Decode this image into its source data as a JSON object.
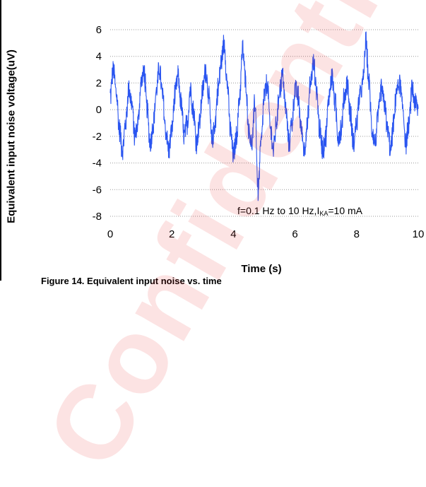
{
  "chart_data": {
    "type": "line",
    "xlabel": "Time (s)",
    "ylabel": "Equivalent input noise voltage(uV)",
    "xlim": [
      0,
      10
    ],
    "ylim": [
      -8,
      6
    ],
    "x_ticks": [
      "0",
      "2",
      "4",
      "6",
      "8",
      "10"
    ],
    "y_ticks": [
      "6",
      "4",
      "2",
      "0",
      "-2",
      "-4",
      "-6",
      "-8"
    ],
    "grid": "horizontal dotted",
    "series": [
      {
        "color": "#2a55f0",
        "x": [
          0.0,
          0.1,
          0.2,
          0.3,
          0.4,
          0.5,
          0.6,
          0.7,
          0.8,
          0.9,
          1.0,
          1.1,
          1.2,
          1.3,
          1.4,
          1.5,
          1.6,
          1.7,
          1.8,
          1.9,
          2.0,
          2.1,
          2.2,
          2.3,
          2.4,
          2.5,
          2.6,
          2.7,
          2.8,
          2.9,
          3.0,
          3.1,
          3.2,
          3.3,
          3.4,
          3.5,
          3.6,
          3.7,
          3.8,
          3.9,
          4.0,
          4.1,
          4.2,
          4.3,
          4.4,
          4.5,
          4.6,
          4.7,
          4.8,
          4.9,
          5.0,
          5.1,
          5.2,
          5.3,
          5.4,
          5.5,
          5.6,
          5.7,
          5.8,
          5.9,
          6.0,
          6.1,
          6.2,
          6.3,
          6.4,
          6.5,
          6.6,
          6.7,
          6.8,
          6.9,
          7.0,
          7.1,
          7.2,
          7.3,
          7.4,
          7.5,
          7.6,
          7.7,
          7.8,
          7.9,
          8.0,
          8.1,
          8.2,
          8.3,
          8.4,
          8.5,
          8.6,
          8.7,
          8.8,
          8.9,
          9.0,
          9.1,
          9.2,
          9.3,
          9.4,
          9.5,
          9.6,
          9.7,
          9.8,
          9.9,
          10.0
        ],
        "y": [
          1.0,
          3.0,
          1.2,
          -1.5,
          -3.0,
          -1.0,
          1.5,
          0.5,
          -2.0,
          -1.0,
          2.0,
          2.8,
          0.0,
          -2.5,
          -1.0,
          1.5,
          3.0,
          1.0,
          -1.5,
          -3.0,
          -1.5,
          1.0,
          2.5,
          0.5,
          -2.0,
          -1.0,
          1.5,
          0.0,
          -2.5,
          -1.0,
          1.5,
          3.0,
          1.0,
          -2.5,
          -1.0,
          1.5,
          3.5,
          5.0,
          2.0,
          -1.5,
          -3.5,
          -2.0,
          1.0,
          4.5,
          2.0,
          -1.5,
          -2.5,
          0.5,
          -6.0,
          -2.5,
          1.0,
          2.0,
          -1.5,
          -3.0,
          -1.0,
          1.5,
          2.5,
          0.0,
          -2.5,
          -1.0,
          1.5,
          1.0,
          -1.5,
          -3.0,
          -1.0,
          2.0,
          3.5,
          1.5,
          -1.5,
          -3.0,
          -2.0,
          1.0,
          2.5,
          0.5,
          -2.0,
          -1.5,
          1.0,
          2.0,
          -0.5,
          -2.5,
          -1.0,
          1.0,
          2.0,
          5.0,
          2.0,
          -1.5,
          -2.5,
          -0.5,
          1.5,
          0.5,
          -1.5,
          -3.0,
          -1.0,
          1.5,
          2.0,
          0.0,
          -2.5,
          -1.0,
          1.5,
          0.5,
          0.0
        ]
      }
    ],
    "annotation": {
      "prefix": "f=0.1 Hz to 10 Hz,I",
      "subscript": "KA",
      "suffix": "=10 mA"
    }
  },
  "caption": "Figure 14. Equivalent input noise vs. time"
}
